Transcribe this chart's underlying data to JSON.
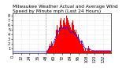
{
  "title": "Milwaukee Weather Actual and Average Wind Speed by Minute mph (Last 24 Hours)",
  "bar_color": "#ff0000",
  "line_color": "#0000ff",
  "background_color": "#ffffff",
  "plot_bg_color": "#ffffff",
  "grid_color": "#cccccc",
  "vline_color": "#aaaaaa",
  "ylim": [
    0,
    8.5
  ],
  "num_points": 144,
  "actual_wind": [
    0.0,
    0.0,
    0.0,
    0.0,
    0.0,
    0.0,
    0.0,
    0.0,
    0.0,
    0.0,
    0.0,
    0.0,
    0.0,
    0.0,
    0.0,
    0.0,
    0.0,
    0.0,
    0.0,
    0.0,
    0.0,
    0.0,
    0.0,
    0.0,
    0.0,
    0.0,
    0.0,
    0.0,
    0.0,
    0.0,
    0.0,
    0.0,
    0.0,
    0.0,
    0.0,
    0.0,
    0.0,
    0.0,
    0.0,
    0.0,
    0.0,
    0.0,
    0.0,
    0.0,
    0.0,
    0.0,
    0.0,
    0.0,
    0.0,
    0.0,
    0.5,
    0.5,
    1.0,
    1.5,
    2.0,
    1.5,
    2.0,
    2.5,
    2.0,
    1.5,
    2.0,
    2.5,
    3.0,
    4.0,
    5.0,
    6.0,
    5.0,
    4.0,
    5.5,
    7.0,
    7.5,
    8.0,
    6.0,
    5.5,
    7.0,
    7.5,
    6.5,
    6.0,
    7.5,
    8.0,
    7.5,
    7.0,
    6.5,
    6.0,
    5.5,
    5.0,
    6.0,
    6.5,
    7.0,
    6.0,
    5.0,
    4.5,
    5.0,
    5.5,
    4.0,
    3.5,
    4.0,
    3.0,
    2.5,
    2.0,
    2.5,
    3.0,
    2.0,
    1.5,
    1.0,
    0.5,
    1.0,
    0.5,
    1.0,
    0.5,
    1.0,
    1.5,
    1.0,
    0.5,
    0.5,
    0.5,
    0.5,
    0.5,
    0.5,
    0.5,
    0.5,
    0.5,
    0.5,
    0.5,
    0.5,
    0.5,
    0.5,
    0.5,
    0.5,
    0.5,
    0.5,
    0.5,
    0.5,
    0.5,
    0.5,
    0.5,
    0.5,
    0.5,
    0.5,
    0.5,
    0.5,
    0.5,
    0.5,
    0.5
  ],
  "avg_wind": [
    0.3,
    0.3,
    0.3,
    0.3,
    0.3,
    0.3,
    0.3,
    0.3,
    0.3,
    0.3,
    0.3,
    0.3,
    0.3,
    0.3,
    0.3,
    0.3,
    0.3,
    0.3,
    0.3,
    0.3,
    0.3,
    0.3,
    0.3,
    0.3,
    0.3,
    0.3,
    0.3,
    0.3,
    0.3,
    0.3,
    0.3,
    0.3,
    0.3,
    0.3,
    0.3,
    0.3,
    0.3,
    0.3,
    0.3,
    0.3,
    0.3,
    0.3,
    0.3,
    0.3,
    0.3,
    0.3,
    0.3,
    0.3,
    0.3,
    0.3,
    0.5,
    0.6,
    0.8,
    1.0,
    1.2,
    1.3,
    1.5,
    1.8,
    2.0,
    2.2,
    2.5,
    2.8,
    3.2,
    3.6,
    4.0,
    4.5,
    4.8,
    4.6,
    4.9,
    5.2,
    5.5,
    5.6,
    5.4,
    5.2,
    5.5,
    5.6,
    5.4,
    5.2,
    5.6,
    5.7,
    5.5,
    5.3,
    5.0,
    4.8,
    4.5,
    4.3,
    4.5,
    4.6,
    4.7,
    4.5,
    4.0,
    3.8,
    3.9,
    4.0,
    3.5,
    3.2,
    3.4,
    2.9,
    2.6,
    2.3,
    2.5,
    2.7,
    2.2,
    1.8,
    1.5,
    1.2,
    1.0,
    0.9,
    0.9,
    0.8,
    0.8,
    0.9,
    0.9,
    0.8,
    0.7,
    0.6,
    0.6,
    0.6,
    0.5,
    0.5,
    0.5,
    0.5,
    0.5,
    0.5,
    0.5,
    0.5,
    0.5,
    0.5,
    0.5,
    0.5,
    0.5,
    0.5,
    0.5,
    0.5,
    0.5,
    0.5,
    0.5,
    0.5,
    0.5,
    0.5,
    0.5,
    0.5,
    0.5,
    0.5
  ],
  "yticks": [
    1,
    2,
    3,
    4,
    5,
    6,
    7,
    8
  ],
  "xtick_step": 12,
  "title_fontsize": 4.2,
  "tick_fontsize": 3.5,
  "vline_x": 48
}
